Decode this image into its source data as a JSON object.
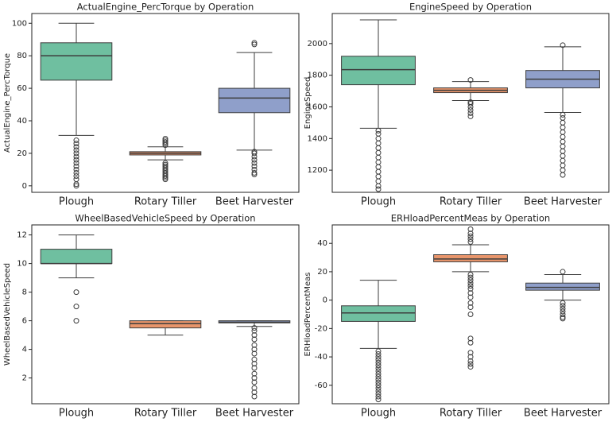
{
  "chart_data": [
    {
      "type": "box",
      "title": "ActualEngine_PercTorque by Operation",
      "y_label": "ActualEngine_PercTorque",
      "categories": [
        "Plough",
        "Rotary Tiller",
        "Beet Harvester"
      ],
      "colors": [
        "#6fbfa0",
        "#e8956b",
        "#8f9fca"
      ],
      "ylim": [
        -4,
        106
      ],
      "yticks": [
        0,
        20,
        40,
        60,
        80,
        100
      ],
      "boxes": [
        {
          "whislo": 31,
          "q1": 65,
          "med": 80,
          "q3": 88,
          "whishi": 100,
          "fliers": [
            0,
            1,
            4,
            6,
            8,
            10,
            12,
            14,
            16,
            18,
            20,
            22,
            24,
            26,
            28
          ]
        },
        {
          "whislo": 16,
          "q1": 19,
          "med": 20,
          "q3": 21,
          "whishi": 24,
          "fliers": [
            4,
            5,
            6,
            7,
            8,
            9,
            10,
            11,
            12,
            13,
            14,
            25,
            26,
            27,
            28,
            29
          ]
        },
        {
          "whislo": 22,
          "q1": 45,
          "med": 54,
          "q3": 60,
          "whishi": 82,
          "fliers": [
            7,
            8,
            10,
            12,
            14,
            16,
            18,
            20,
            21,
            87,
            88
          ]
        }
      ]
    },
    {
      "type": "box",
      "title": "EngineSpeed by Operation",
      "y_label": "EngineSpeed",
      "categories": [
        "Plough",
        "Rotary Tiller",
        "Beet Harvester"
      ],
      "colors": [
        "#6fbfa0",
        "#e8956b",
        "#8f9fca"
      ],
      "ylim": [
        1060,
        2190
      ],
      "yticks": [
        1200,
        1400,
        1600,
        1800,
        2000
      ],
      "boxes": [
        {
          "whislo": 1465,
          "q1": 1740,
          "med": 1835,
          "q3": 1920,
          "whishi": 2150,
          "fliers": [
            1080,
            1100,
            1130,
            1160,
            1190,
            1220,
            1250,
            1280,
            1310,
            1340,
            1370,
            1400,
            1430,
            1450
          ]
        },
        {
          "whislo": 1640,
          "q1": 1690,
          "med": 1705,
          "q3": 1720,
          "whishi": 1760,
          "fliers": [
            1540,
            1560,
            1580,
            1600,
            1620,
            1630,
            1770
          ]
        },
        {
          "whislo": 1565,
          "q1": 1720,
          "med": 1775,
          "q3": 1830,
          "whishi": 1980,
          "fliers": [
            1170,
            1200,
            1230,
            1260,
            1290,
            1320,
            1350,
            1380,
            1410,
            1440,
            1470,
            1500,
            1530,
            1550,
            1990
          ]
        }
      ]
    },
    {
      "type": "box",
      "title": "WheelBasedVehicleSpeed by Operation",
      "y_label": "WheelBasedVehicleSpeed",
      "categories": [
        "Plough",
        "Rotary Tiller",
        "Beet Harvester"
      ],
      "colors": [
        "#6fbfa0",
        "#e8956b",
        "#8f9fca"
      ],
      "ylim": [
        0.2,
        12.7
      ],
      "yticks": [
        2,
        4,
        6,
        8,
        10,
        12
      ],
      "boxes": [
        {
          "whislo": 9,
          "q1": 10,
          "med": 10,
          "q3": 11,
          "whishi": 12,
          "fliers": [
            6,
            7,
            8
          ]
        },
        {
          "whislo": 5,
          "q1": 5.5,
          "med": 5.8,
          "q3": 6,
          "whishi": 6,
          "fliers": []
        },
        {
          "whislo": 5.6,
          "q1": 5.85,
          "med": 5.9,
          "q3": 6,
          "whishi": 6,
          "fliers": [
            0.7,
            1,
            1.3,
            1.7,
            2,
            2.3,
            2.7,
            3,
            3.3,
            3.7,
            4,
            4.3,
            4.7,
            5,
            5.3,
            5.5
          ]
        }
      ]
    },
    {
      "type": "box",
      "title": "ERHloadPercentMeas by Operation",
      "y_label": "ERHloadPercentMeas",
      "categories": [
        "Plough",
        "Rotary Tiller",
        "Beet Harvester"
      ],
      "colors": [
        "#6fbfa0",
        "#e8956b",
        "#8f9fca"
      ],
      "ylim": [
        -73,
        53
      ],
      "yticks": [
        -60,
        -40,
        -20,
        0,
        20,
        40
      ],
      "boxes": [
        {
          "whislo": -34,
          "q1": -15,
          "med": -9,
          "q3": -4,
          "whishi": 14,
          "fliers": [
            -36,
            -38,
            -40,
            -42,
            -44,
            -46,
            -48,
            -50,
            -52,
            -54,
            -56,
            -58,
            -60,
            -62,
            -64,
            -66,
            -68,
            -70
          ]
        },
        {
          "whislo": 20,
          "q1": 27,
          "med": 29,
          "q3": 32,
          "whishi": 39,
          "fliers": [
            41,
            43,
            45,
            47,
            50,
            -47,
            -45,
            -43,
            -40,
            -37,
            -30,
            -27,
            -10,
            -5,
            -2,
            2,
            5,
            8,
            10,
            12,
            14,
            16,
            18
          ]
        },
        {
          "whislo": 0,
          "q1": 7,
          "med": 9,
          "q3": 12,
          "whishi": 18,
          "fliers": [
            20,
            -2,
            -4,
            -6,
            -8,
            -10,
            -12,
            -13
          ]
        }
      ]
    }
  ]
}
